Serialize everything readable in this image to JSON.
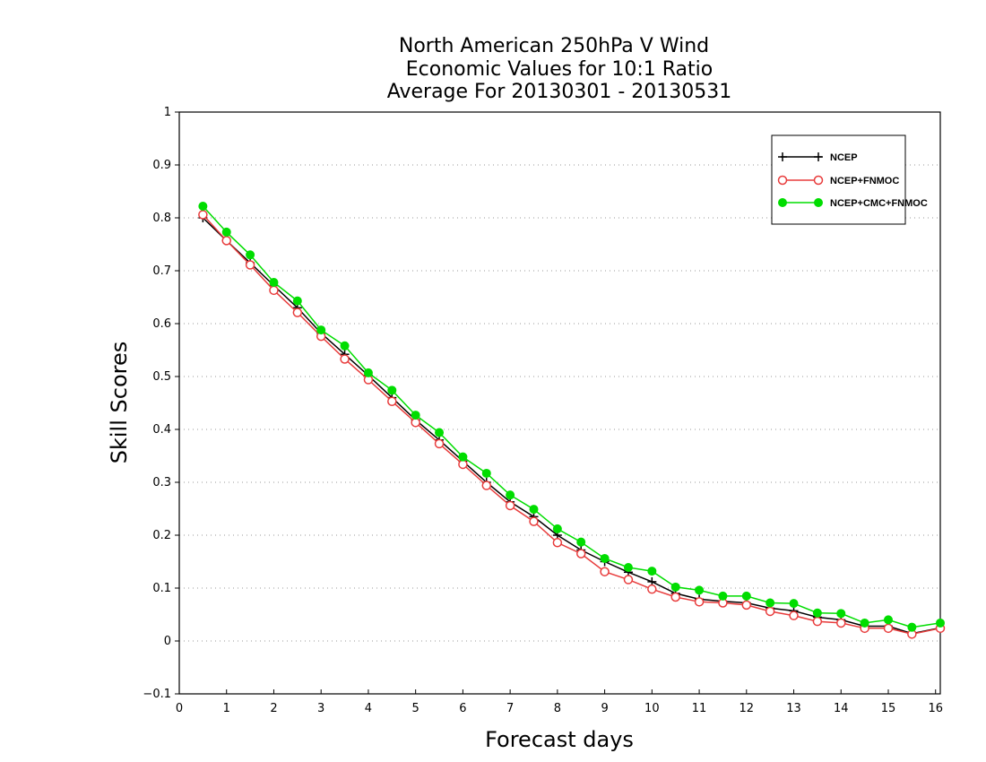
{
  "chart_data": {
    "type": "line",
    "title_lines": [
      "North American 250hPa V Wind",
      "Economic Values for 10:1 Ratio",
      "Average For 20130301 - 20130531"
    ],
    "xlabel": "Forecast days",
    "ylabel": "Skill Scores",
    "xlim": [
      0,
      16.1
    ],
    "ylim": [
      -0.1,
      1.0
    ],
    "xticks": [
      0,
      1,
      2,
      3,
      4,
      5,
      6,
      7,
      8,
      9,
      10,
      11,
      12,
      13,
      14,
      15,
      16
    ],
    "xtick_labels": [
      "0",
      "1",
      "2",
      "3",
      "4",
      "5",
      "6",
      "7",
      "8",
      "9",
      "10",
      "11",
      "12",
      "13",
      "14",
      "15",
      "16"
    ],
    "yticks": [
      -0.1,
      0,
      0.1,
      0.2,
      0.3,
      0.4,
      0.5,
      0.6,
      0.7,
      0.8,
      0.9,
      1
    ],
    "ytick_labels": [
      "−0.1",
      "0",
      "0.1",
      "0.2",
      "0.3",
      "0.4",
      "0.5",
      "0.6",
      "0.7",
      "0.8",
      "0.9",
      "1"
    ],
    "grid": "horizontal dotted",
    "legend_position": "top-right",
    "x": [
      0.5,
      1,
      1.5,
      2,
      2.5,
      3,
      3.5,
      4,
      4.5,
      5,
      5.5,
      6,
      6.5,
      7,
      7.5,
      8,
      8.5,
      9,
      9.5,
      10,
      10.5,
      11,
      11.5,
      12,
      12.5,
      13,
      13.5,
      14,
      14.5,
      15,
      15.5,
      16.1
    ],
    "series": [
      {
        "name": "NCEP",
        "color": "#000000",
        "marker": "plus",
        "values": [
          0.8,
          0.757,
          0.715,
          0.672,
          0.63,
          0.582,
          0.542,
          0.502,
          0.46,
          0.418,
          0.38,
          0.34,
          0.3,
          0.263,
          0.235,
          0.2,
          0.172,
          0.15,
          0.13,
          0.112,
          0.09,
          0.079,
          0.075,
          0.072,
          0.062,
          0.057,
          0.045,
          0.04,
          0.028,
          0.028,
          0.014,
          0.025
        ]
      },
      {
        "name": "NCEP+FNMOC",
        "color": "#e83c3c",
        "marker": "open-circle",
        "values": [
          0.806,
          0.757,
          0.711,
          0.663,
          0.621,
          0.576,
          0.533,
          0.494,
          0.453,
          0.413,
          0.373,
          0.334,
          0.294,
          0.256,
          0.226,
          0.186,
          0.165,
          0.131,
          0.116,
          0.098,
          0.083,
          0.074,
          0.072,
          0.068,
          0.056,
          0.048,
          0.037,
          0.034,
          0.024,
          0.024,
          0.013,
          0.024
        ]
      },
      {
        "name": "NCEP+CMC+FNMOC",
        "color": "#00dd00",
        "marker": "filled-circle",
        "values": [
          0.822,
          0.773,
          0.73,
          0.678,
          0.643,
          0.588,
          0.558,
          0.507,
          0.474,
          0.427,
          0.394,
          0.348,
          0.317,
          0.276,
          0.249,
          0.212,
          0.187,
          0.156,
          0.139,
          0.132,
          0.102,
          0.096,
          0.085,
          0.085,
          0.072,
          0.071,
          0.053,
          0.052,
          0.034,
          0.04,
          0.026,
          0.034
        ]
      }
    ]
  }
}
